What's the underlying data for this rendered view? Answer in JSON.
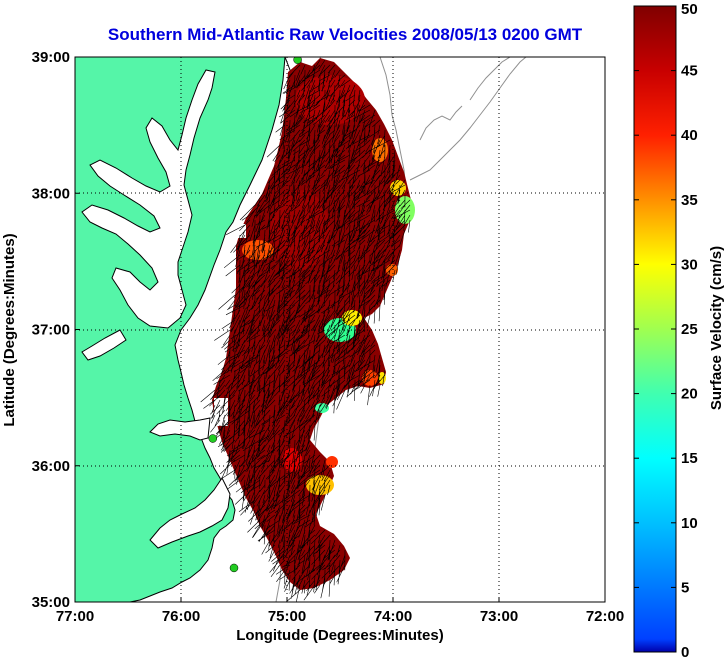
{
  "title": "Southern Mid-Atlantic Raw Velocities 2008/05/13 0200 GMT",
  "map": {
    "xlabel": "Longitude (Degrees:Minutes)",
    "ylabel": "Latitude (Degrees:Minutes)",
    "x_ticks": [
      "77:00",
      "76:00",
      "75:00",
      "74:00",
      "73:00",
      "72:00"
    ],
    "y_ticks": [
      "39:00",
      "38:00",
      "37:00",
      "36:00",
      "35:00"
    ],
    "lon_range": [
      -77,
      -72
    ],
    "lat_range": [
      35,
      39
    ],
    "grid": true,
    "land_color": "#55f5a8",
    "coast_color": "#000000",
    "bathymetry_color": "#909090",
    "vector_color": "#000000",
    "station_color": "#22cc22"
  },
  "colorbar": {
    "label": "Surface Velocity (cm/s)",
    "ticks": [
      "0",
      "5",
      "10",
      "15",
      "20",
      "25",
      "30",
      "35",
      "40",
      "45",
      "50"
    ],
    "range": [
      0,
      50
    ],
    "colormap": "jet"
  },
  "stations": [
    {
      "lon": -74.9,
      "lat": 38.98
    },
    {
      "lon": -75.7,
      "lat": 36.2
    },
    {
      "lon": -75.5,
      "lat": 35.25
    }
  ]
}
